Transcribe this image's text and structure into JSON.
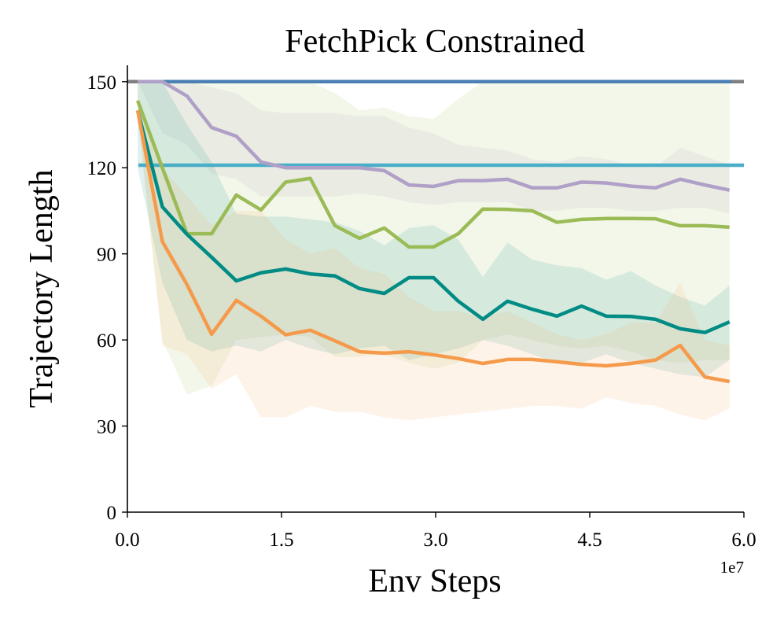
{
  "chart_data": {
    "type": "line",
    "title": "FetchPick Constrained",
    "xlabel": "Env Steps",
    "ylabel": "Trajectory Length",
    "x_offset_label": "1e7",
    "xlim": [
      0,
      6.0
    ],
    "ylim": [
      0,
      155.7
    ],
    "xticks": [
      "0.0",
      "1.5",
      "3.0",
      "4.5",
      "6.0"
    ],
    "xtick_values": [
      0,
      1.5,
      3.0,
      4.5,
      6.0
    ],
    "yticks": [
      "0",
      "30",
      "60",
      "90",
      "120",
      "150"
    ],
    "ytick_values": [
      0,
      30,
      60,
      90,
      120,
      150
    ],
    "grid": false,
    "x": [
      0.1,
      0.34,
      0.58,
      0.82,
      1.06,
      1.3,
      1.54,
      1.78,
      2.02,
      2.26,
      2.5,
      2.74,
      2.98,
      3.22,
      3.46,
      3.7,
      3.94,
      4.18,
      4.42,
      4.66,
      4.9,
      5.14,
      5.38,
      5.62,
      5.86
    ],
    "hlines": [
      {
        "name": "gray-reference",
        "value": 150,
        "color": "#808080"
      },
      {
        "name": "blue-reference",
        "value": 150,
        "color": "#4a80b4"
      },
      {
        "name": "cyan-reference",
        "value": 120.9,
        "color": "#4aaec8"
      }
    ],
    "series": [
      {
        "name": "purple",
        "color": "#b0a0c8",
        "values": [
          150,
          150,
          145,
          134,
          131,
          122,
          120,
          120,
          120,
          120,
          119,
          114,
          113.5,
          115.5,
          115.5,
          116,
          113,
          113,
          115,
          114.7,
          113.6,
          113,
          116,
          114,
          112.2
        ],
        "upper": [
          150,
          150,
          150,
          148,
          146,
          140,
          139,
          139,
          139,
          138,
          138,
          134,
          132,
          128,
          127,
          126,
          123,
          122,
          124,
          123,
          121,
          120,
          127,
          124,
          121
        ],
        "lower": [
          150,
          132,
          128,
          118,
          116,
          110,
          110,
          110,
          110,
          111,
          110,
          108,
          107,
          108,
          108,
          108,
          105,
          105,
          106,
          106,
          105,
          105,
          106,
          106,
          104
        ]
      },
      {
        "name": "green",
        "color": "#9bbb56",
        "values": [
          143.4,
          120,
          97,
          97,
          110.5,
          105.3,
          115,
          116.3,
          99.8,
          95.4,
          99,
          92.4,
          92.4,
          97,
          105.6,
          105.5,
          105,
          101,
          102,
          102.3,
          102.3,
          102.2,
          99.8,
          99.8,
          99.3
        ],
        "upper": [
          150,
          150,
          150,
          150,
          150,
          150,
          150,
          150,
          146,
          140,
          141,
          138,
          137,
          144,
          150,
          150,
          150,
          150,
          150,
          150,
          150,
          150,
          150,
          150,
          150
        ],
        "lower": [
          137,
          60,
          41,
          44,
          60,
          61,
          62,
          61,
          54,
          54,
          55,
          52,
          50,
          52,
          60,
          62,
          60,
          58,
          57,
          58,
          56,
          53,
          52,
          53,
          53
        ]
      },
      {
        "name": "teal",
        "color": "#008b84",
        "values": [
          140,
          106.4,
          96.8,
          88.8,
          80.6,
          83.4,
          84.7,
          83,
          82.3,
          77.9,
          76.2,
          81.7,
          81.7,
          73.5,
          67.2,
          73.5,
          70.7,
          68.3,
          71.8,
          68.3,
          68.2,
          67.2,
          63.9,
          62.6,
          66.3
        ],
        "upper": [
          150,
          150,
          135,
          122,
          104,
          103,
          103,
          102,
          101,
          98,
          93,
          99,
          100,
          95,
          82,
          94,
          88,
          86,
          85,
          81,
          84,
          79,
          75,
          72,
          79
        ],
        "lower": [
          120,
          80,
          60,
          56,
          58,
          56,
          60,
          57,
          55,
          57,
          58,
          53,
          55,
          57,
          60,
          58,
          55,
          52,
          52,
          55,
          52,
          50,
          48,
          47,
          53
        ]
      },
      {
        "name": "orange",
        "color": "#f59a4a",
        "values": [
          140,
          94.3,
          79.3,
          62,
          73.8,
          68.3,
          61.8,
          63.4,
          59.7,
          55.9,
          55.4,
          55.9,
          54.8,
          53.5,
          51.8,
          53.2,
          53.2,
          52.4,
          51.5,
          51,
          51.8,
          53,
          58.1,
          47.1,
          45.5
        ],
        "upper": [
          140,
          120,
          110,
          100,
          105,
          105,
          95,
          90,
          92,
          85,
          83,
          75,
          70,
          70,
          68,
          70,
          66,
          62,
          60,
          62,
          66,
          66,
          80,
          60,
          58
        ],
        "lower": [
          140,
          58,
          55,
          43,
          48,
          33,
          33,
          37,
          35,
          35,
          33,
          32,
          33,
          34,
          35,
          36,
          37,
          37,
          36,
          40,
          38,
          37,
          34,
          32,
          36
        ]
      }
    ]
  }
}
